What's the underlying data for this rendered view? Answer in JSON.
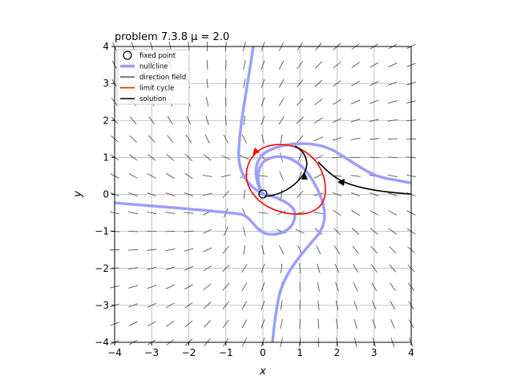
{
  "chart_data": {
    "type": "line",
    "title": "problem 7.3.8 μ = 2.0",
    "xlabel": "x",
    "ylabel": "y",
    "xlim": [
      -4,
      4
    ],
    "ylim": [
      -4,
      4
    ],
    "xticks": [
      -4,
      -3,
      -2,
      -1,
      0,
      1,
      2,
      3,
      4
    ],
    "yticks": [
      -4,
      -3,
      -2,
      -1,
      0,
      1,
      2,
      3,
      4
    ],
    "grid": true,
    "legend_position": "top-left",
    "legend": [
      {
        "label": "fixed point",
        "color": "#000000",
        "kind": "circle"
      },
      {
        "label": "nullcline",
        "color": "#9999ff",
        "kind": "thick-line"
      },
      {
        "label": "direction field",
        "color": "#555555",
        "kind": "line"
      },
      {
        "label": "limit cycle",
        "color": "#ff0000",
        "kind": "line"
      },
      {
        "label": "solution",
        "color": "#000000",
        "kind": "line"
      }
    ],
    "fixed_points": [
      [
        0,
        0
      ]
    ],
    "direction_field_spacing": 0.5
  }
}
